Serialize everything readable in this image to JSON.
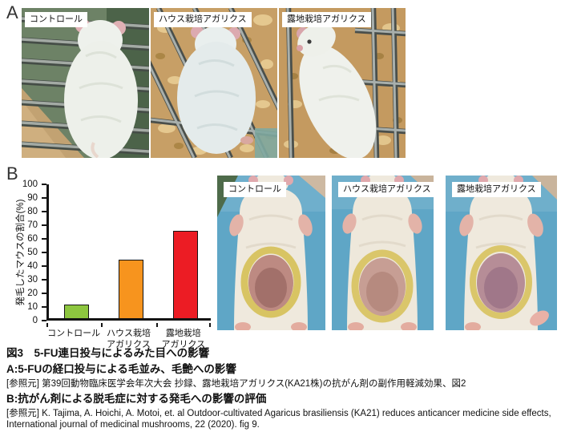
{
  "panel_a": {
    "label": "A",
    "photos": [
      {
        "label": "コントロール"
      },
      {
        "label": "ハウス栽培アガリクス"
      },
      {
        "label": "露地栽培アガリクス"
      }
    ]
  },
  "panel_b": {
    "label": "B",
    "photos": [
      {
        "label": "コントロール"
      },
      {
        "label": "ハウス栽培アガリクス"
      },
      {
        "label": "露地栽培アガリクス"
      }
    ]
  },
  "chart_data": {
    "type": "bar",
    "title": "",
    "xlabel": "",
    "ylabel": "発毛したマウスの割合(%)",
    "ylim": [
      0,
      100
    ],
    "ytick_step": 10,
    "categories": [
      [
        "コントロール"
      ],
      [
        "ハウス栽培",
        "アガリクス"
      ],
      [
        "露地栽培",
        "アガリクス"
      ]
    ],
    "values": [
      10,
      43,
      64
    ],
    "bar_colors": [
      "#8dc63f",
      "#f7941e",
      "#ec1c24"
    ],
    "grid": false,
    "legend": "none"
  },
  "caption": {
    "figure_title": "図3　5-FU連日投与によるみた目への影響",
    "line_a": "A:5-FUの経口投与による毛並み、毛艶への影響",
    "ref_a": "[参照元] 第39回動物臨床医学会年次大会 抄録、露地栽培アガリクス(KA21株)の抗がん剤の副作用軽減効果、図2",
    "line_b": "B:抗がん剤による脱毛症に対する発毛への影響の評価",
    "ref_b": "[参照元] K. Tajima, A. Hoichi, A. Motoi, et. al Outdoor-cultivated Agaricus brasiliensis (KA21) reduces anticancer medicine side effects, International journal of medicinal mushrooms, 22 (2020). fig 9."
  }
}
